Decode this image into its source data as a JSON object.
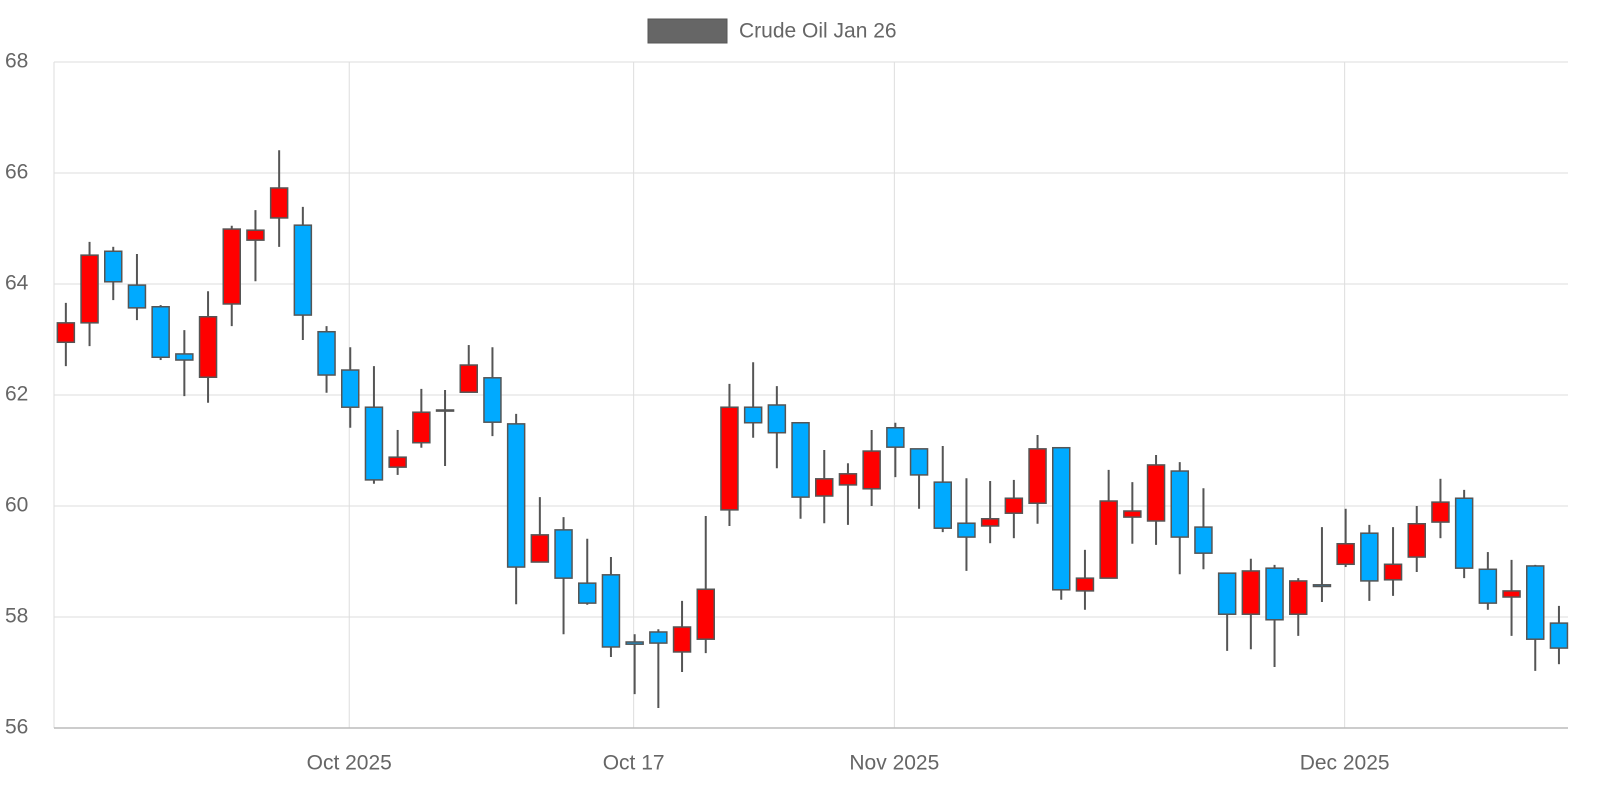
{
  "chart_data": {
    "type": "candlestick",
    "name": "Crude Oil Jan 26",
    "legend_color": "#666666",
    "increasing_color": "#ff0000",
    "decreasing_color": "#00aaff",
    "line_color": "#555555",
    "categories": [
      "2025-09-15",
      "2025-09-16",
      "2025-09-17",
      "2025-09-18",
      "2025-09-19",
      "2025-09-22",
      "2025-09-23",
      "2025-09-24",
      "2025-09-25",
      "2025-09-26",
      "2025-09-29",
      "2025-09-30",
      "2025-10-01",
      "2025-10-02",
      "2025-10-03",
      "2025-10-06",
      "2025-10-07",
      "2025-10-08",
      "2025-10-09",
      "2025-10-10",
      "2025-10-13",
      "2025-10-14",
      "2025-10-15",
      "2025-10-16",
      "2025-10-17",
      "2025-10-20",
      "2025-10-21",
      "2025-10-22",
      "2025-10-23",
      "2025-10-24",
      "2025-10-27",
      "2025-10-28",
      "2025-10-29",
      "2025-10-30",
      "2025-10-31",
      "2025-11-03",
      "2025-11-04",
      "2025-11-05",
      "2025-11-06",
      "2025-11-07",
      "2025-11-10",
      "2025-11-11",
      "2025-11-12",
      "2025-11-13",
      "2025-11-14",
      "2025-11-17",
      "2025-11-18",
      "2025-11-19",
      "2025-11-20",
      "2025-11-21",
      "2025-11-24",
      "2025-11-25",
      "2025-11-26",
      "2025-11-28",
      "2025-12-01",
      "2025-12-02",
      "2025-12-03",
      "2025-12-04",
      "2025-12-05",
      "2025-12-08",
      "2025-12-09",
      "2025-12-10",
      "2025-12-11",
      "2025-12-12"
    ],
    "open": [
      62.95,
      63.3,
      64.59,
      63.98,
      63.59,
      62.74,
      62.32,
      63.64,
      64.79,
      65.19,
      65.06,
      63.14,
      62.45,
      61.78,
      60.7,
      61.14,
      61.73,
      62.05,
      62.31,
      61.48,
      58.99,
      59.57,
      58.61,
      58.76,
      57.55,
      57.73,
      57.37,
      57.6,
      59.93,
      61.78,
      61.82,
      61.5,
      60.18,
      60.38,
      60.31,
      61.41,
      61.03,
      60.43,
      59.69,
      59.64,
      59.87,
      60.05,
      61.05,
      58.47,
      58.7,
      59.8,
      59.73,
      60.63,
      59.62,
      58.79,
      58.05,
      58.88,
      58.05,
      58.58,
      58.95,
      59.51,
      58.67,
      59.08,
      59.71,
      60.14,
      58.86,
      58.36,
      58.92,
      57.89
    ],
    "high": [
      63.66,
      64.76,
      64.67,
      64.54,
      63.62,
      63.17,
      63.87,
      65.05,
      65.33,
      66.41,
      65.39,
      63.24,
      62.86,
      62.52,
      61.37,
      62.11,
      62.09,
      62.9,
      62.86,
      61.66,
      60.16,
      59.8,
      59.41,
      59.08,
      57.69,
      57.78,
      58.29,
      59.82,
      62.2,
      62.59,
      62.16,
      61.5,
      61.01,
      60.77,
      61.37,
      61.5,
      61.03,
      61.08,
      60.5,
      60.45,
      60.47,
      61.28,
      61.05,
      59.21,
      60.65,
      60.43,
      60.92,
      60.79,
      60.32,
      58.79,
      59.05,
      58.94,
      58.7,
      59.62,
      59.95,
      59.66,
      59.62,
      60.0,
      60.49,
      60.29,
      59.17,
      59.03,
      58.94,
      58.2
    ],
    "low": [
      62.52,
      62.88,
      63.71,
      63.35,
      62.63,
      61.98,
      61.86,
      63.24,
      64.05,
      64.67,
      62.99,
      62.04,
      61.41,
      60.4,
      60.56,
      61.05,
      60.72,
      62.05,
      61.26,
      58.23,
      58.99,
      57.69,
      58.22,
      57.28,
      56.61,
      56.36,
      57.01,
      57.35,
      59.64,
      61.23,
      60.68,
      59.77,
      59.69,
      59.66,
      60.0,
      60.52,
      59.95,
      59.53,
      58.83,
      59.33,
      59.42,
      59.68,
      58.31,
      58.13,
      58.7,
      59.32,
      59.3,
      58.77,
      58.86,
      57.39,
      57.42,
      57.1,
      57.66,
      58.27,
      58.9,
      58.29,
      58.38,
      58.81,
      59.42,
      58.7,
      58.13,
      57.66,
      57.03,
      57.15
    ],
    "close": [
      63.3,
      64.52,
      64.04,
      63.57,
      62.68,
      62.63,
      63.41,
      64.99,
      64.97,
      65.73,
      63.44,
      62.36,
      61.78,
      60.47,
      60.88,
      61.69,
      61.71,
      62.54,
      61.51,
      58.9,
      59.48,
      58.7,
      58.25,
      57.46,
      57.51,
      57.53,
      57.82,
      58.5,
      61.78,
      61.5,
      61.32,
      60.16,
      60.49,
      60.58,
      60.99,
      61.06,
      60.56,
      59.6,
      59.44,
      59.77,
      60.14,
      61.03,
      58.49,
      58.7,
      60.09,
      59.91,
      60.74,
      59.44,
      59.15,
      58.05,
      58.83,
      57.95,
      58.65,
      58.55,
      59.32,
      58.65,
      58.95,
      59.68,
      60.07,
      58.88,
      58.25,
      58.47,
      57.6,
      57.44
    ],
    "ylim": [
      56,
      68
    ],
    "yticks": [
      56,
      58,
      60,
      62,
      64,
      66,
      68
    ],
    "xticks": [
      {
        "value": "2025-10-01",
        "label": "Oct 2025"
      },
      {
        "value": "2025-10-17",
        "label": "Oct 17"
      },
      {
        "value": "2025-11-01",
        "label": "Nov 2025"
      },
      {
        "value": "2025-12-01",
        "label": "Dec 2025"
      }
    ],
    "grid": true
  }
}
